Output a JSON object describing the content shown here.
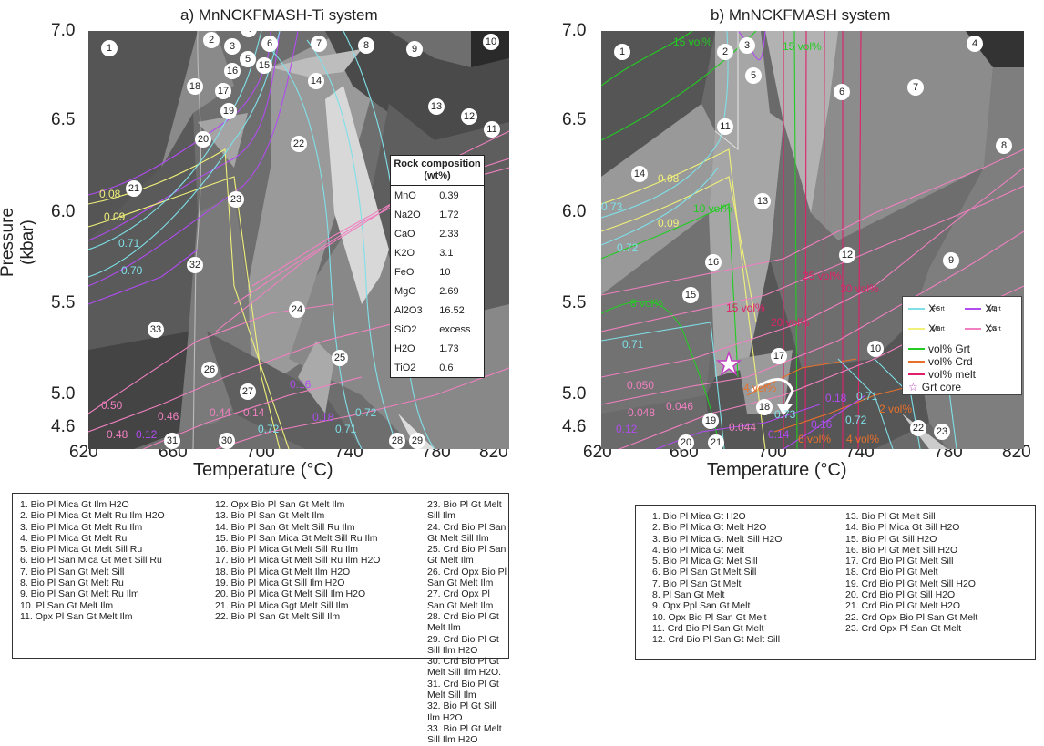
{
  "panel_a": {
    "title": "a) MnNCKFMASH-Ti system",
    "y_ticks": [
      "7.0",
      "6.5",
      "6.0",
      "5.5",
      "5.0",
      "4.6"
    ],
    "x_ticks": [
      "620",
      "660",
      "700",
      "740",
      "780",
      "820"
    ],
    "xlabel": "Temperature (°C)",
    "ylabel": "Pressure (kbar)",
    "field_labels": [
      "1",
      "2",
      "3",
      "4",
      "5",
      "6",
      "7",
      "8",
      "9",
      "10",
      "11",
      "12",
      "13",
      "14",
      "15",
      "16",
      "17",
      "18",
      "19",
      "20",
      "21",
      "22",
      "23",
      "24",
      "25",
      "26",
      "27",
      "28",
      "29",
      "30",
      "31",
      "32",
      "33"
    ],
    "isopleth_labels": [
      "0.08",
      "0.09",
      "0.71",
      "0.70",
      "0.50",
      "0.48",
      "0.46",
      "0.12",
      "0.44",
      "0.14",
      "0.72",
      "0.16",
      "0.18",
      "0.71",
      "0.72"
    ],
    "rock_composition": {
      "header": "Rock composition (wt%)",
      "rows": [
        {
          "oxide": "MnO",
          "value": "0.39"
        },
        {
          "oxide": "Na2O",
          "value": "1.72"
        },
        {
          "oxide": "CaO",
          "value": "2.33"
        },
        {
          "oxide": "K2O",
          "value": "3.1"
        },
        {
          "oxide": "FeO",
          "value": "10"
        },
        {
          "oxide": "MgO",
          "value": "2.69"
        },
        {
          "oxide": "Al2O3",
          "value": "16.52"
        },
        {
          "oxide": "SiO2",
          "value": "excess"
        },
        {
          "oxide": "H2O",
          "value": "1.73"
        },
        {
          "oxide": "TiO2",
          "value": "0.6"
        }
      ]
    },
    "assemblages": [
      "1. Bio Pl Mica Gt Ilm H2O",
      "2. Bio Pl Mica Gt Melt Ru Ilm H2O",
      "3. Bio Pl Mica Gt Melt Ru Ilm",
      "4. Bio Pl Mica Gt Melt Ru",
      "5. Bio Pl Mica Gt Melt Sill Ru",
      "6. Bio Pl San Mica Gt Melt Sill Ru",
      "7. Bio Pl San Gt Melt Sill",
      "8. Bio Pl San Gt Melt Ru",
      "9. Bio Pl San Gt Melt Ru Ilm",
      "10. Pl San Gt Melt Ilm",
      "11. Opx Pl San Gt Melt Ilm",
      "12. Opx Bio Pl San Gt Melt Ilm",
      "13. Bio Pl San Gt Melt Ilm",
      "14. Bio Pl San Gt Melt Sill Ru Ilm",
      "15. Bio Pl San Mica Gt Melt Sill Ru Ilm",
      "16. Bio Pl Mica Gt Melt Sill Ru Ilm",
      "17. Bio Pl Mica Gt Melt Sill Ru Ilm H2O",
      "18. Bio Pl Mica Gt Melt Ilm H2O",
      "19. Bio Pl Mica Gt Sill Ilm H2O",
      "20. Bio Pl Mica Gt Melt Sill Ilm H2O",
      "21. Bio Pl Mica Ggt Melt Sill Ilm",
      "22. Bio Pl San Gt Melt Sill Ilm",
      "23. Bio Pl Gt Melt Sill Ilm",
      "24. Crd Bio Pl San Gt Melt Sill Ilm",
      "25. Crd Bio Pl San Gt Melt Ilm",
      "26. Crd Opx Bio Pl San Gt Melt Ilm",
      "27. Crd Opx Pl San Gt Melt Ilm",
      "28. Crd Bio Pl Gt Melt Ilm",
      "29. Crd Bio Pl Gt Sill Ilm H2O",
      "30. Crd Bio Pl Gt Melt Sill Ilm H2O.",
      "31. Crd Bio Pl Gt Melt Sill Ilm",
      "32. Bio Pl Gt Sill Ilm H2O",
      "33. Bio Pl Gt Melt Sill Ilm H2O"
    ]
  },
  "panel_b": {
    "title": "b) MnNCKFMASH system",
    "y_ticks": [
      "7.0",
      "6.5",
      "6.0",
      "5.5",
      "5.0",
      "4.6"
    ],
    "x_ticks": [
      "620",
      "660",
      "700",
      "740",
      "780",
      "820"
    ],
    "xlabel": "Temperature (°C)",
    "field_labels": [
      "1",
      "2",
      "3",
      "4",
      "5",
      "6",
      "7",
      "8",
      "9",
      "10",
      "11",
      "12",
      "13",
      "14",
      "15",
      "16",
      "17",
      "18",
      "19",
      "20",
      "21",
      "22",
      "23"
    ],
    "vol_labels": [
      "15 vol%",
      "15 vol%",
      "10 vol%",
      "8 vol%",
      "15 vol%",
      "20 vol%",
      "25 vol%",
      "30 vol%",
      "2 vol%",
      "4 vol%",
      "6 vol%",
      "4 vol%"
    ],
    "isopleth_labels": [
      "0.08",
      "0.09",
      "0.73",
      "0.72",
      "0.71",
      "0.050",
      "0.048",
      "0.046",
      "0.12",
      "0.044",
      "0.14",
      "0.16",
      "0.18",
      "0.71",
      "0.72",
      "0.73"
    ],
    "key": {
      "xfe": "X",
      "xfe_sup": "Grt",
      "xfe_sub": "Fe",
      "xmg": "X",
      "xmg_sup": "Grt",
      "xmg_sub": "Mg",
      "xmn": "X",
      "xmn_sup": "Grt",
      "xmn_sub": "Mn",
      "xca": "X",
      "xca_sup": "Grt",
      "xca_sub": "Ca",
      "grt": "vol% Grt",
      "crd": "vol% Crd",
      "melt": "vol% melt",
      "core": "Grt core"
    },
    "assemblages": [
      "1. Bio Pl Mica Gt H2O",
      "2. Bio Pl Mica Gt Melt H2O",
      "3. Bio Pl Mica Gt Melt Sill H2O",
      "4. Bio Pl Mica Gt Melt",
      "5. Bio Pl Mica Gt Met Sill",
      "6. Bio Pl San Gt Melt Sill",
      "7. Bio Pl San Gt Melt",
      "8. Pl San Gt Melt",
      "9. Opx Ppl San Gt Melt",
      "10. Opx Bio Pl San Gt Melt",
      "11. Crd Bio Pl San Gt Melt",
      "12. Crd Bio Pl San Gt Melt Sill",
      "13. Bio Pl Gt Melt Sill",
      "14. Bio Pl Mica Gt Sill H2O",
      "15. Bio Pl Gt Sill H2O",
      "16. Bio Pl Gt Melt Sill H2O",
      "17. Crd Bio Pl Gt Melt Sill",
      "18. Crd Bio Pl Gt Melt",
      "19. Crd Bio Pl Gt Melt Sill H2O",
      "20. Crd Bio Pl Gt Sill H2O",
      "21. Crd Bio Pl Gt Melt H2O",
      "22. Crd Opx Bio Pl San Gt Melt",
      "23. Crd Opx Pl San Gt Melt"
    ]
  },
  "colors": {
    "xfe": "#7fe0e8",
    "xmn": "#f0f07a",
    "xmg": "#b04cf0",
    "xca": "#f080c0",
    "grt": "#22cc22",
    "crd": "#e8702a",
    "melt": "#e0206a",
    "core": "#c040c0"
  }
}
